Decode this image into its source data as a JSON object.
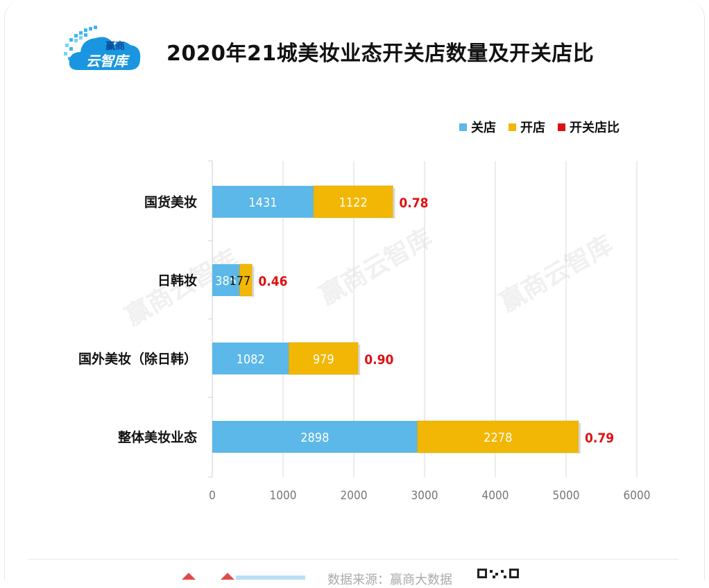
{
  "logo": {
    "line1": "赢商",
    "line2": "云智库"
  },
  "watermark": "赢商云智库",
  "footer": {
    "source": "数据来源：赢商大数据"
  },
  "chart_data": {
    "type": "bar",
    "orientation": "horizontal",
    "stacked": true,
    "title": "2020年21城美妆业态开关店数量及开关店比",
    "categories": [
      "国货美妆",
      "日韩妆",
      "国外美妆（除日韩）",
      "整体美妆业态"
    ],
    "series": [
      {
        "name": "关店",
        "color": "#5bb8e8",
        "values": [
          1431,
          385,
          1082,
          2898
        ]
      },
      {
        "name": "开店",
        "color": "#f2b705",
        "values": [
          1122,
          177,
          979,
          2278
        ]
      }
    ],
    "ratio": {
      "name": "开关店比",
      "color": "#e01010",
      "labels": [
        "0.78",
        "0.46",
        "0.90",
        "0.79"
      ]
    },
    "xlim": [
      0,
      6000
    ],
    "xticks": [
      0,
      1000,
      2000,
      3000,
      4000,
      5000,
      6000
    ],
    "grid": true,
    "legend_position": "top-right"
  }
}
